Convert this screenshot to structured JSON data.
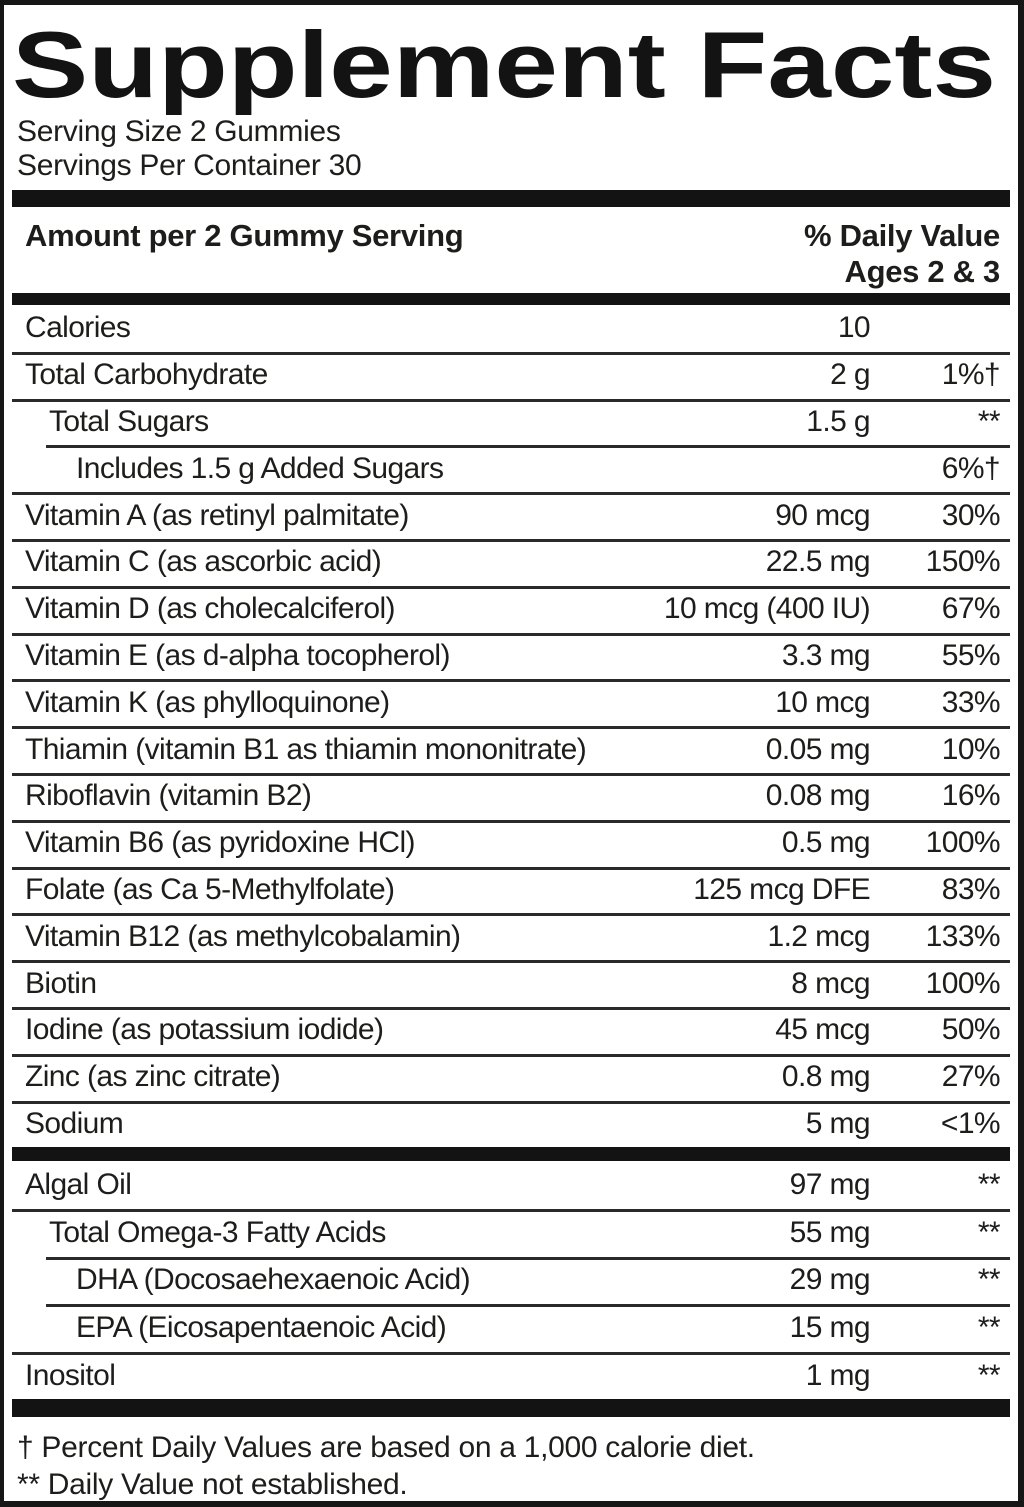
{
  "title": "Supplement Facts",
  "serving": {
    "size_line": "Serving Size 2 Gummies",
    "per_container_line": "Servings Per Container 30"
  },
  "header": {
    "amount_label": "Amount per 2 Gummy Serving",
    "dv_label": "% Daily Value",
    "dv_sublabel": "Ages 2 & 3"
  },
  "panel": {
    "main_rows": [
      {
        "name": "Calories",
        "amount": "10",
        "dv": "",
        "indent": 0
      },
      {
        "name": "Total Carbohydrate",
        "amount": "2 g",
        "dv": "1%†",
        "indent": 0
      },
      {
        "name": "Total Sugars",
        "amount": "1.5 g",
        "dv": "**",
        "indent": 1
      },
      {
        "name": "Includes 1.5 g Added Sugars",
        "amount": "",
        "dv": "6%†",
        "indent": 2
      },
      {
        "name": "Vitamin A (as retinyl palmitate)",
        "amount": "90 mcg",
        "dv": "30%",
        "indent": 0
      },
      {
        "name": "Vitamin C (as ascorbic acid)",
        "amount": "22.5 mg",
        "dv": "150%",
        "indent": 0
      },
      {
        "name": "Vitamin D (as cholecalciferol)",
        "amount": "10 mcg (400 IU)",
        "dv": "67%",
        "indent": 0
      },
      {
        "name": "Vitamin E (as d-alpha tocopherol)",
        "amount": "3.3 mg",
        "dv": "55%",
        "indent": 0
      },
      {
        "name": "Vitamin K (as phylloquinone)",
        "amount": "10 mcg",
        "dv": "33%",
        "indent": 0
      },
      {
        "name": "Thiamin (vitamin B1 as thiamin mononitrate)",
        "amount": "0.05 mg",
        "dv": "10%",
        "indent": 0
      },
      {
        "name": "Riboflavin (vitamin B2)",
        "amount": "0.08 mg",
        "dv": "16%",
        "indent": 0
      },
      {
        "name": "Vitamin B6 (as pyridoxine HCl)",
        "amount": "0.5 mg",
        "dv": "100%",
        "indent": 0
      },
      {
        "name": "Folate (as Ca 5-Methylfolate)",
        "amount": "125 mcg DFE",
        "dv": "83%",
        "indent": 0
      },
      {
        "name": "Vitamin B12 (as methylcobalamin)",
        "amount": "1.2 mcg",
        "dv": "133%",
        "indent": 0
      },
      {
        "name": "Biotin",
        "amount": "8 mcg",
        "dv": "100%",
        "indent": 0
      },
      {
        "name": "Iodine (as potassium iodide)",
        "amount": "45 mcg",
        "dv": "50%",
        "indent": 0
      },
      {
        "name": "Zinc (as zinc citrate)",
        "amount": "0.8 mg",
        "dv": "27%",
        "indent": 0
      },
      {
        "name": "Sodium",
        "amount": "5 mg",
        "dv": "<1%",
        "indent": 0
      }
    ],
    "secondary_rows": [
      {
        "name": "Algal Oil",
        "amount": "97 mg",
        "dv": "**",
        "indent": 0
      },
      {
        "name": "Total Omega-3 Fatty Acids",
        "amount": "55 mg",
        "dv": "**",
        "indent": 1
      },
      {
        "name": "DHA (Docosaehexaenoic Acid)",
        "amount": "29 mg",
        "dv": "**",
        "indent": 2
      },
      {
        "name": "EPA (Eicosapentaenoic Acid)",
        "amount": "15 mg",
        "dv": "**",
        "indent": 2
      },
      {
        "name": "Inositol",
        "amount": "1 mg",
        "dv": "**",
        "indent": 0
      }
    ]
  },
  "footnotes": {
    "dagger": "† Percent Daily Values are based on a 1,000 calorie diet.",
    "double_asterisk": "** Daily Value not established."
  },
  "colors": {
    "background": "#ffffff",
    "text": "#1d1d1b",
    "bar": "#131313",
    "hairline": "#2a2a2a"
  }
}
